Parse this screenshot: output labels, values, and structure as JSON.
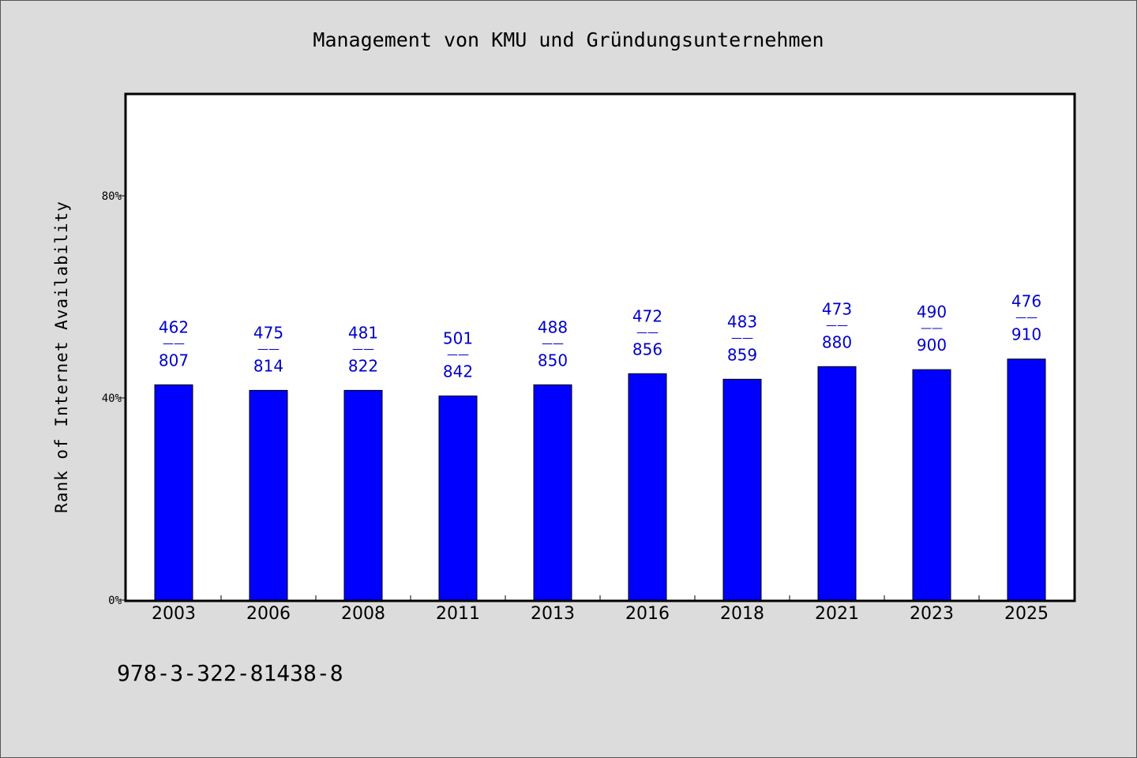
{
  "chart_data": {
    "type": "bar",
    "title": "Management von KMU und Gründungsunternehmen",
    "xlabel": "",
    "ylabel": "Rank of Internet Availability",
    "categories": [
      "2003",
      "2006",
      "2008",
      "2011",
      "2013",
      "2016",
      "2018",
      "2021",
      "2023",
      "2025"
    ],
    "values": [
      0.426,
      0.415,
      0.415,
      0.404,
      0.426,
      0.448,
      0.437,
      0.462,
      0.456,
      0.477
    ],
    "labels": [
      {
        "top": "462",
        "sep": "——",
        "bottom": "807"
      },
      {
        "top": "475",
        "sep": "——",
        "bottom": "814"
      },
      {
        "top": "481",
        "sep": "——",
        "bottom": "822"
      },
      {
        "top": "501",
        "sep": "——",
        "bottom": "842"
      },
      {
        "top": "488",
        "sep": "——",
        "bottom": "850"
      },
      {
        "top": "472",
        "sep": "——",
        "bottom": "856"
      },
      {
        "top": "483",
        "sep": "——",
        "bottom": "859"
      },
      {
        "top": "473",
        "sep": "——",
        "bottom": "880"
      },
      {
        "top": "490",
        "sep": "——",
        "bottom": "900"
      },
      {
        "top": "476",
        "sep": "——",
        "bottom": "910"
      }
    ],
    "ylim": [
      0,
      1.0
    ],
    "yticks": [
      {
        "value": 0,
        "label": "0%"
      },
      {
        "value": 0.4,
        "label": "40%"
      },
      {
        "value": 0.8,
        "label": "80%"
      }
    ],
    "grid": false,
    "colors": {
      "bar": "#0000ff",
      "label": "#0000cc",
      "plot_bg": "#ffffff",
      "page_bg": "#dcdcdc"
    }
  },
  "footer": {
    "code": "978-3-322-81438-8"
  }
}
